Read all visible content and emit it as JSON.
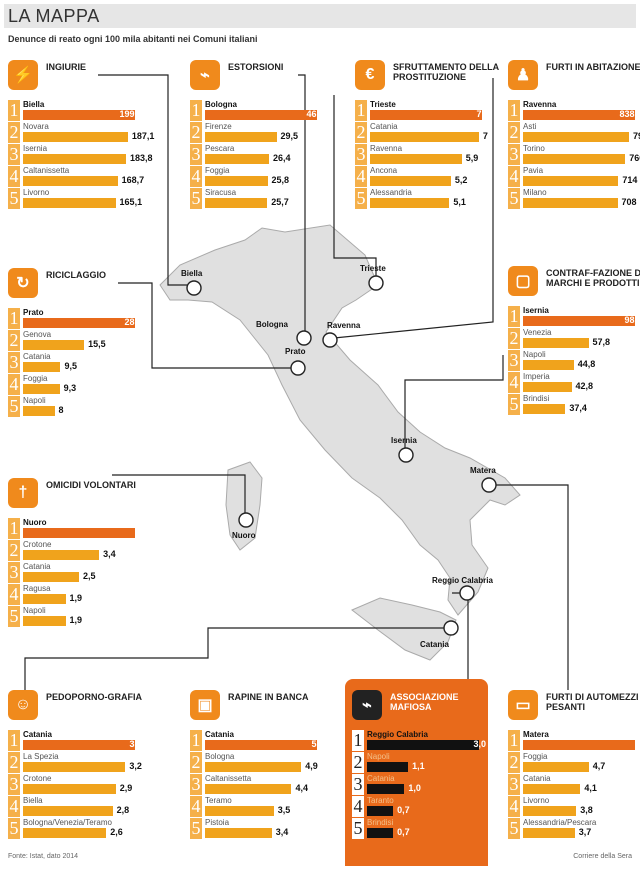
{
  "header": {
    "title": "LA MAPPA",
    "subtitle": "Denunce di reato ogni 100 mila abitanti nei Comuni italiani"
  },
  "footer": {
    "source": "Fonte: Istat, dato 2014",
    "credit": "Corriere della Sera"
  },
  "map_labels": [
    "Biella",
    "Trieste",
    "Bologna",
    "Ravenna",
    "Prato",
    "Isernia",
    "Matera",
    "Nuoro",
    "Reggio Calabria",
    "Catania"
  ],
  "colors": {
    "bar": "#f0a31c",
    "bar_top": "#e86a1b",
    "rank": "#f5b04a",
    "mafia_bg": "#e86a1b",
    "mafia_bar": "#111111"
  },
  "chart_data": [
    {
      "type": "bar",
      "title": "INGIURIE",
      "icon": "lightning-icon",
      "categories": [
        "Biella",
        "Novara",
        "Isernia",
        "Caltanissetta",
        "Livorno"
      ],
      "values": [
        199.8,
        187.1,
        183.8,
        168.7,
        165.1
      ],
      "labels": [
        "199,8",
        "187,1",
        "183,8",
        "168,7",
        "165,1"
      ]
    },
    {
      "type": "bar",
      "title": "ESTORSIONI",
      "icon": "gun-icon",
      "categories": [
        "Bologna",
        "Firenze",
        "Pescara",
        "Foggia",
        "Siracusa"
      ],
      "values": [
        46.2,
        29.5,
        26.4,
        25.8,
        25.7
      ],
      "labels": [
        "46,2",
        "29,5",
        "26,4",
        "25,8",
        "25,7"
      ]
    },
    {
      "type": "bar",
      "title": "SFRUTTAMENTO DELLA PROSTITUZIONE",
      "icon": "euro-heart-icon",
      "categories": [
        "Trieste",
        "Catania",
        "Ravenna",
        "Ancona",
        "Alessandria"
      ],
      "values": [
        7.2,
        7,
        5.9,
        5.2,
        5.1
      ],
      "labels": [
        "7,2",
        "7",
        "5,9",
        "5,2",
        "5,1"
      ]
    },
    {
      "type": "bar",
      "title": "FURTI IN ABITAZIONE",
      "icon": "burglar-icon",
      "categories": [
        "Ravenna",
        "Asti",
        "Torino",
        "Pavia",
        "Milano"
      ],
      "values": [
        838.7,
        794,
        766,
        714,
        708
      ],
      "labels": [
        "838,7",
        "794",
        "766",
        "714",
        "708"
      ]
    },
    {
      "type": "bar",
      "title": "RICICLAGGIO",
      "icon": "money-cycle-icon",
      "categories": [
        "Prato",
        "Genova",
        "Catania",
        "Foggia",
        "Napoli"
      ],
      "values": [
        28.4,
        15.5,
        9.5,
        9.3,
        8
      ],
      "labels": [
        "28,4",
        "15,5",
        "9,5",
        "9,3",
        "8"
      ]
    },
    {
      "type": "bar",
      "title": "CONTRAF-FAZIONE DI MARCHI E PRODOTTI",
      "icon": "handbag-icon",
      "categories": [
        "Isernia",
        "Venezia",
        "Napoli",
        "Imperia",
        "Brindisi"
      ],
      "values": [
        98.8,
        57.8,
        44.8,
        42.8,
        37.4
      ],
      "labels": [
        "98,8",
        "57,8",
        "44,8",
        "42,8",
        "37,4"
      ]
    },
    {
      "type": "bar",
      "title": "OMICIDI VOLONTARI",
      "icon": "knife-icon",
      "categories": [
        "Nuoro",
        "Crotone",
        "Catania",
        "Ragusa",
        "Napoli"
      ],
      "values": [
        5,
        3.4,
        2.5,
        1.9,
        1.9
      ],
      "labels": [
        "5",
        "3,4",
        "2,5",
        "1,9",
        "1,9"
      ]
    },
    {
      "type": "bar",
      "title": "PEDOPORNO-GRAFIA",
      "icon": "child-icon",
      "categories": [
        "Catania",
        "La Spezia",
        "Crotone",
        "Biella",
        "Bologna/Venezia/Teramo"
      ],
      "values": [
        3.5,
        3.2,
        2.9,
        2.8,
        2.6
      ],
      "labels": [
        "3,5",
        "3,2",
        "2,9",
        "2,8",
        "2,6"
      ]
    },
    {
      "type": "bar",
      "title": "RAPINE IN BANCA",
      "icon": "safe-icon",
      "categories": [
        "Catania",
        "Bologna",
        "Caltanissetta",
        "Teramo",
        "Pistoia"
      ],
      "values": [
        5.7,
        4.9,
        4.4,
        3.5,
        3.4
      ],
      "labels": [
        "5,7",
        "4,9",
        "4,4",
        "3,5",
        "3,4"
      ]
    },
    {
      "type": "bar",
      "title": "ASSOCIAZIONE MAFIOSA",
      "icon": "pistol-icon",
      "categories": [
        "Reggio Calabria",
        "Napoli",
        "Catania",
        "Taranto",
        "Brindisi"
      ],
      "values": [
        3.0,
        1.1,
        1.0,
        0.7,
        0.7
      ],
      "labels": [
        "3,0",
        "1,1",
        "1,0",
        "0,7",
        "0,7"
      ]
    },
    {
      "type": "bar",
      "title": "FURTI DI AUTOMEZZI PESANTI",
      "icon": "truck-icon",
      "categories": [
        "Matera",
        "Foggia",
        "Catania",
        "Livorno",
        "Alessandria/Pescara"
      ],
      "values": [
        8,
        4.7,
        4.1,
        3.8,
        3.7
      ],
      "labels": [
        "8",
        "4,7",
        "4,1",
        "3,8",
        "3,7"
      ]
    }
  ]
}
